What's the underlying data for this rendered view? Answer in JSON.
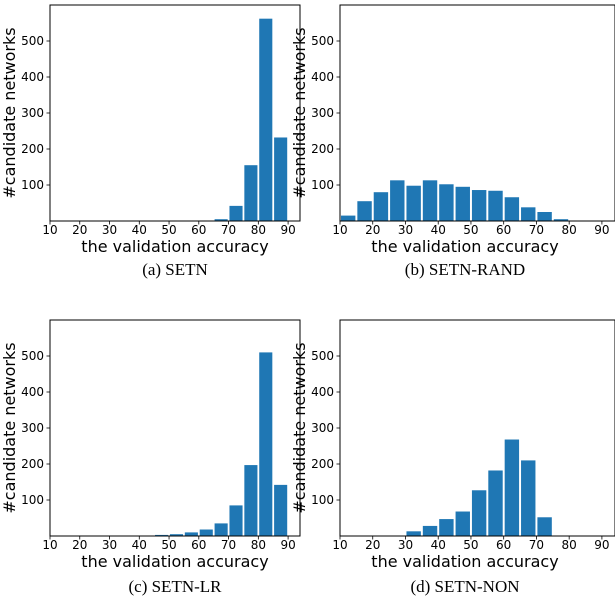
{
  "chart_data": [
    {
      "type": "bar",
      "caption": "(a)  SETN",
      "xlabel": "the validation accuracy",
      "ylabel": "#candidate networks",
      "xticks": [
        10,
        20,
        30,
        40,
        50,
        60,
        70,
        80,
        90
      ],
      "yticks": [
        100,
        200,
        300,
        400,
        500
      ],
      "xlim": [
        10,
        94
      ],
      "ylim": [
        0,
        600
      ],
      "x": [
        67.5,
        72.5,
        77.5,
        82.5,
        87.5
      ],
      "values": [
        5,
        42,
        155,
        562,
        232
      ],
      "color": "#1f77b4"
    },
    {
      "type": "bar",
      "caption": "(b)  SETN-RAND",
      "xlabel": "the validation accuracy",
      "ylabel": "#candidate networks",
      "xticks": [
        10,
        20,
        30,
        40,
        50,
        60,
        70,
        80,
        90
      ],
      "yticks": [
        100,
        200,
        300,
        400,
        500
      ],
      "xlim": [
        10,
        94
      ],
      "ylim": [
        0,
        600
      ],
      "x": [
        12.5,
        17.5,
        22.5,
        27.5,
        32.5,
        37.5,
        42.5,
        47.5,
        52.5,
        57.5,
        62.5,
        67.5,
        72.5,
        77.5
      ],
      "values": [
        15,
        55,
        80,
        113,
        98,
        113,
        102,
        95,
        86,
        84,
        66,
        38,
        25,
        5
      ],
      "color": "#1f77b4"
    },
    {
      "type": "bar",
      "caption": "(c)  SETN-LR",
      "xlabel": "the validation accuracy",
      "ylabel": "#candidate networks",
      "xticks": [
        10,
        20,
        30,
        40,
        50,
        60,
        70,
        80,
        90
      ],
      "yticks": [
        100,
        200,
        300,
        400,
        500
      ],
      "xlim": [
        10,
        94
      ],
      "ylim": [
        0,
        600
      ],
      "x": [
        47.5,
        52.5,
        57.5,
        62.5,
        67.5,
        72.5,
        77.5,
        82.5,
        87.5
      ],
      "values": [
        3,
        5,
        10,
        18,
        35,
        85,
        197,
        510,
        142
      ],
      "color": "#1f77b4"
    },
    {
      "type": "bar",
      "caption": "(d)  SETN-NON",
      "xlabel": "the validation accuracy",
      "ylabel": "#candidate networks",
      "xticks": [
        10,
        20,
        30,
        40,
        50,
        60,
        70,
        80,
        90
      ],
      "yticks": [
        100,
        200,
        300,
        400,
        500
      ],
      "xlim": [
        10,
        94
      ],
      "ylim": [
        0,
        600
      ],
      "x": [
        32.5,
        37.5,
        42.5,
        47.5,
        52.5,
        57.5,
        62.5,
        67.5,
        72.5
      ],
      "values": [
        13,
        28,
        47,
        68,
        127,
        182,
        268,
        210,
        52
      ],
      "color": "#1f77b4"
    }
  ]
}
